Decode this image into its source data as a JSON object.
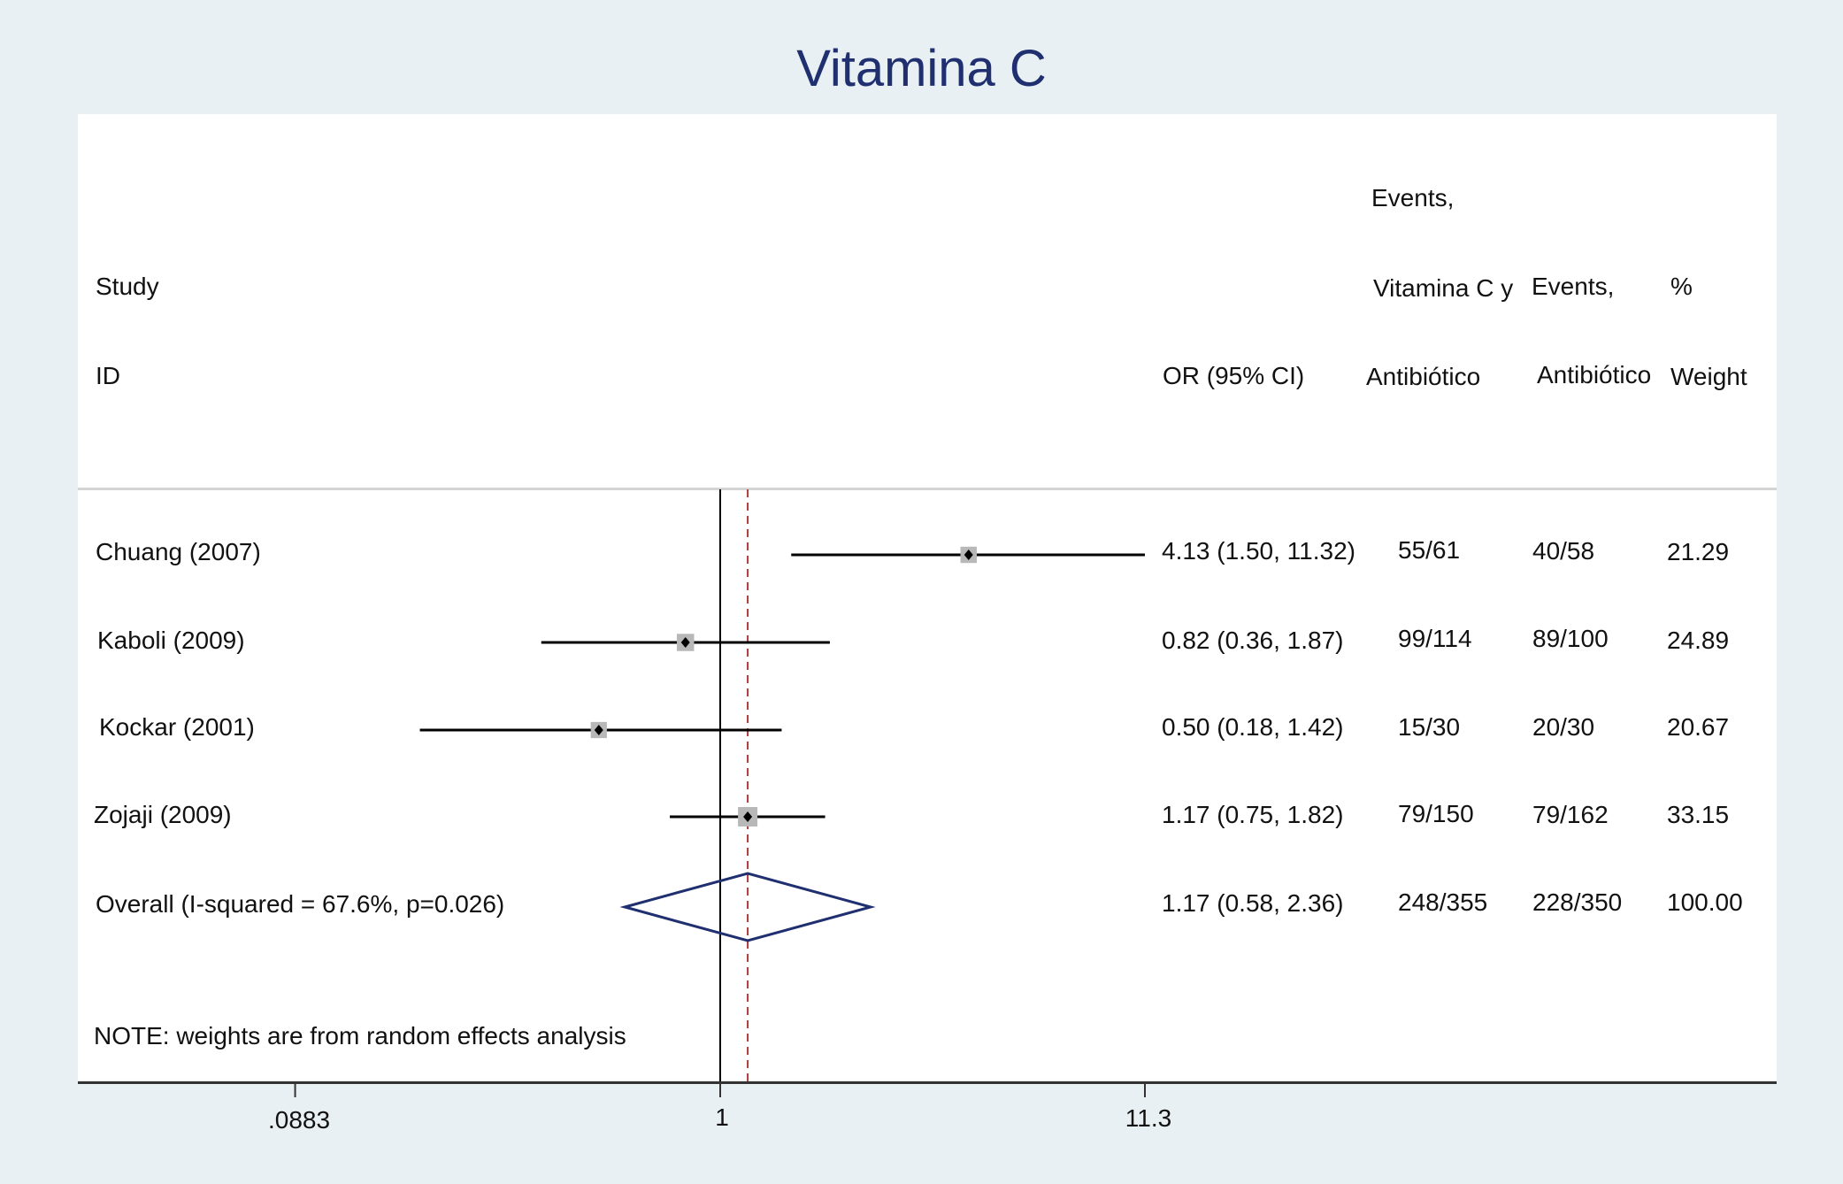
{
  "title": "Vitamina C",
  "headers": {
    "study_line1": "Study",
    "study_line2": "ID",
    "or_label": "OR (95% CI)",
    "events_vc_line1": "Events,",
    "events_vc_line2": "Vitamina C y",
    "events_vc_line3": "Antibiótico",
    "events_ab_line1": "Events,",
    "events_ab_line2": "Antibiótico",
    "weight_line1": "%",
    "weight_line2": "Weight"
  },
  "note": "NOTE: weights are from random effects analysis",
  "colors": {
    "background": "#e9f0f3",
    "title": "#1f2f6f",
    "diamond": "#1f2f6f",
    "reference_dashed": "#b03a3a",
    "ci_line": "#000000",
    "weight_box": "#b8b8b8"
  },
  "chart_data": {
    "type": "forest",
    "title": "Vitamina C",
    "x_scale": "log",
    "x_ticks": [
      {
        "value": 0.0883,
        "label": ".0883"
      },
      {
        "value": 1,
        "label": "1"
      },
      {
        "value": 11.3,
        "label": "11.3"
      }
    ],
    "null_line": 1,
    "overall_line": 1.17,
    "studies": [
      {
        "id": "Chuang (2007)",
        "or": 4.13,
        "lo": 1.5,
        "hi": 11.32,
        "ci_text": "4.13 (1.50, 11.32)",
        "events_vc": "55/61",
        "events_ab": "40/58",
        "weight": "21.29",
        "weight_value": 21.29,
        "arrow_right": true
      },
      {
        "id": "Kaboli (2009)",
        "or": 0.82,
        "lo": 0.36,
        "hi": 1.87,
        "ci_text": "0.82 (0.36, 1.87)",
        "events_vc": "99/114",
        "events_ab": "89/100",
        "weight": "24.89",
        "weight_value": 24.89
      },
      {
        "id": "Kockar (2001)",
        "or": 0.5,
        "lo": 0.18,
        "hi": 1.42,
        "ci_text": "0.50 (0.18, 1.42)",
        "events_vc": "15/30",
        "events_ab": "20/30",
        "weight": "20.67",
        "weight_value": 20.67
      },
      {
        "id": "Zojaji (2009)",
        "or": 1.17,
        "lo": 0.75,
        "hi": 1.82,
        "ci_text": "1.17 (0.75, 1.82)",
        "events_vc": "79/150",
        "events_ab": "79/162",
        "weight": "33.15",
        "weight_value": 33.15
      }
    ],
    "overall": {
      "id": "Overall (I-squared = 67.6%, p=0.026)",
      "or": 1.17,
      "lo": 0.58,
      "hi": 2.36,
      "ci_text": "1.17 (0.58, 2.36)",
      "events_vc": "248/355",
      "events_ab": "228/350",
      "weight": "100.00"
    }
  }
}
